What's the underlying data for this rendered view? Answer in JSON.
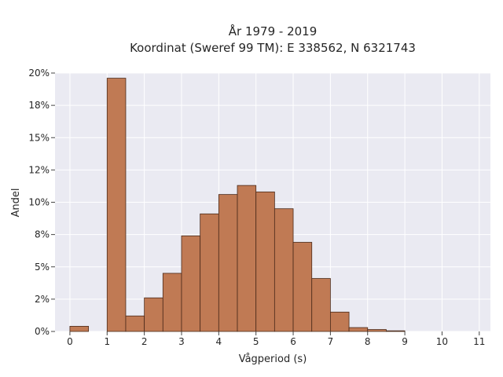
{
  "chart_data": {
    "type": "bar",
    "title_line1": "År 1979 - 2019",
    "title_line2": "Koordinat (Sweref 99 TM): E 338562, N 6321743",
    "xlabel": "Vågperiod (s)",
    "ylabel": "Andel",
    "x_bin_width": 0.5,
    "x_bin_starts": [
      0,
      0.5,
      1,
      1.5,
      2,
      2.5,
      3,
      3.5,
      4,
      4.5,
      5,
      5.5,
      6,
      6.5,
      7,
      7.5,
      8,
      8.5,
      9,
      9.5,
      10,
      10.5
    ],
    "values": [
      0.4,
      0,
      19.6,
      1.2,
      2.6,
      4.5,
      7.4,
      9.1,
      10.6,
      11.3,
      10.8,
      9.5,
      6.9,
      4.1,
      1.5,
      0.3,
      0.15,
      0.05,
      0,
      0,
      0,
      0
    ],
    "xlim": [
      -0.4,
      11.3
    ],
    "ylim": [
      0,
      20
    ],
    "x_ticks": [
      0,
      1,
      2,
      3,
      4,
      5,
      6,
      7,
      8,
      9,
      10,
      11
    ],
    "x_tick_labels": [
      "0",
      "1",
      "2",
      "3",
      "4",
      "5",
      "6",
      "7",
      "8",
      "9",
      "10",
      "11"
    ],
    "y_ticks": [
      0,
      2.5,
      5,
      7.5,
      10,
      12.5,
      15,
      17.5,
      20
    ],
    "y_tick_labels": [
      "0%",
      "2%",
      "5%",
      "8%",
      "10%",
      "12%",
      "15%",
      "18%",
      "20%"
    ],
    "bar_color": "#c07a54",
    "bar_edge_color": "#4a2a1a",
    "plot_background": "#eaeaf2",
    "grid": true
  }
}
